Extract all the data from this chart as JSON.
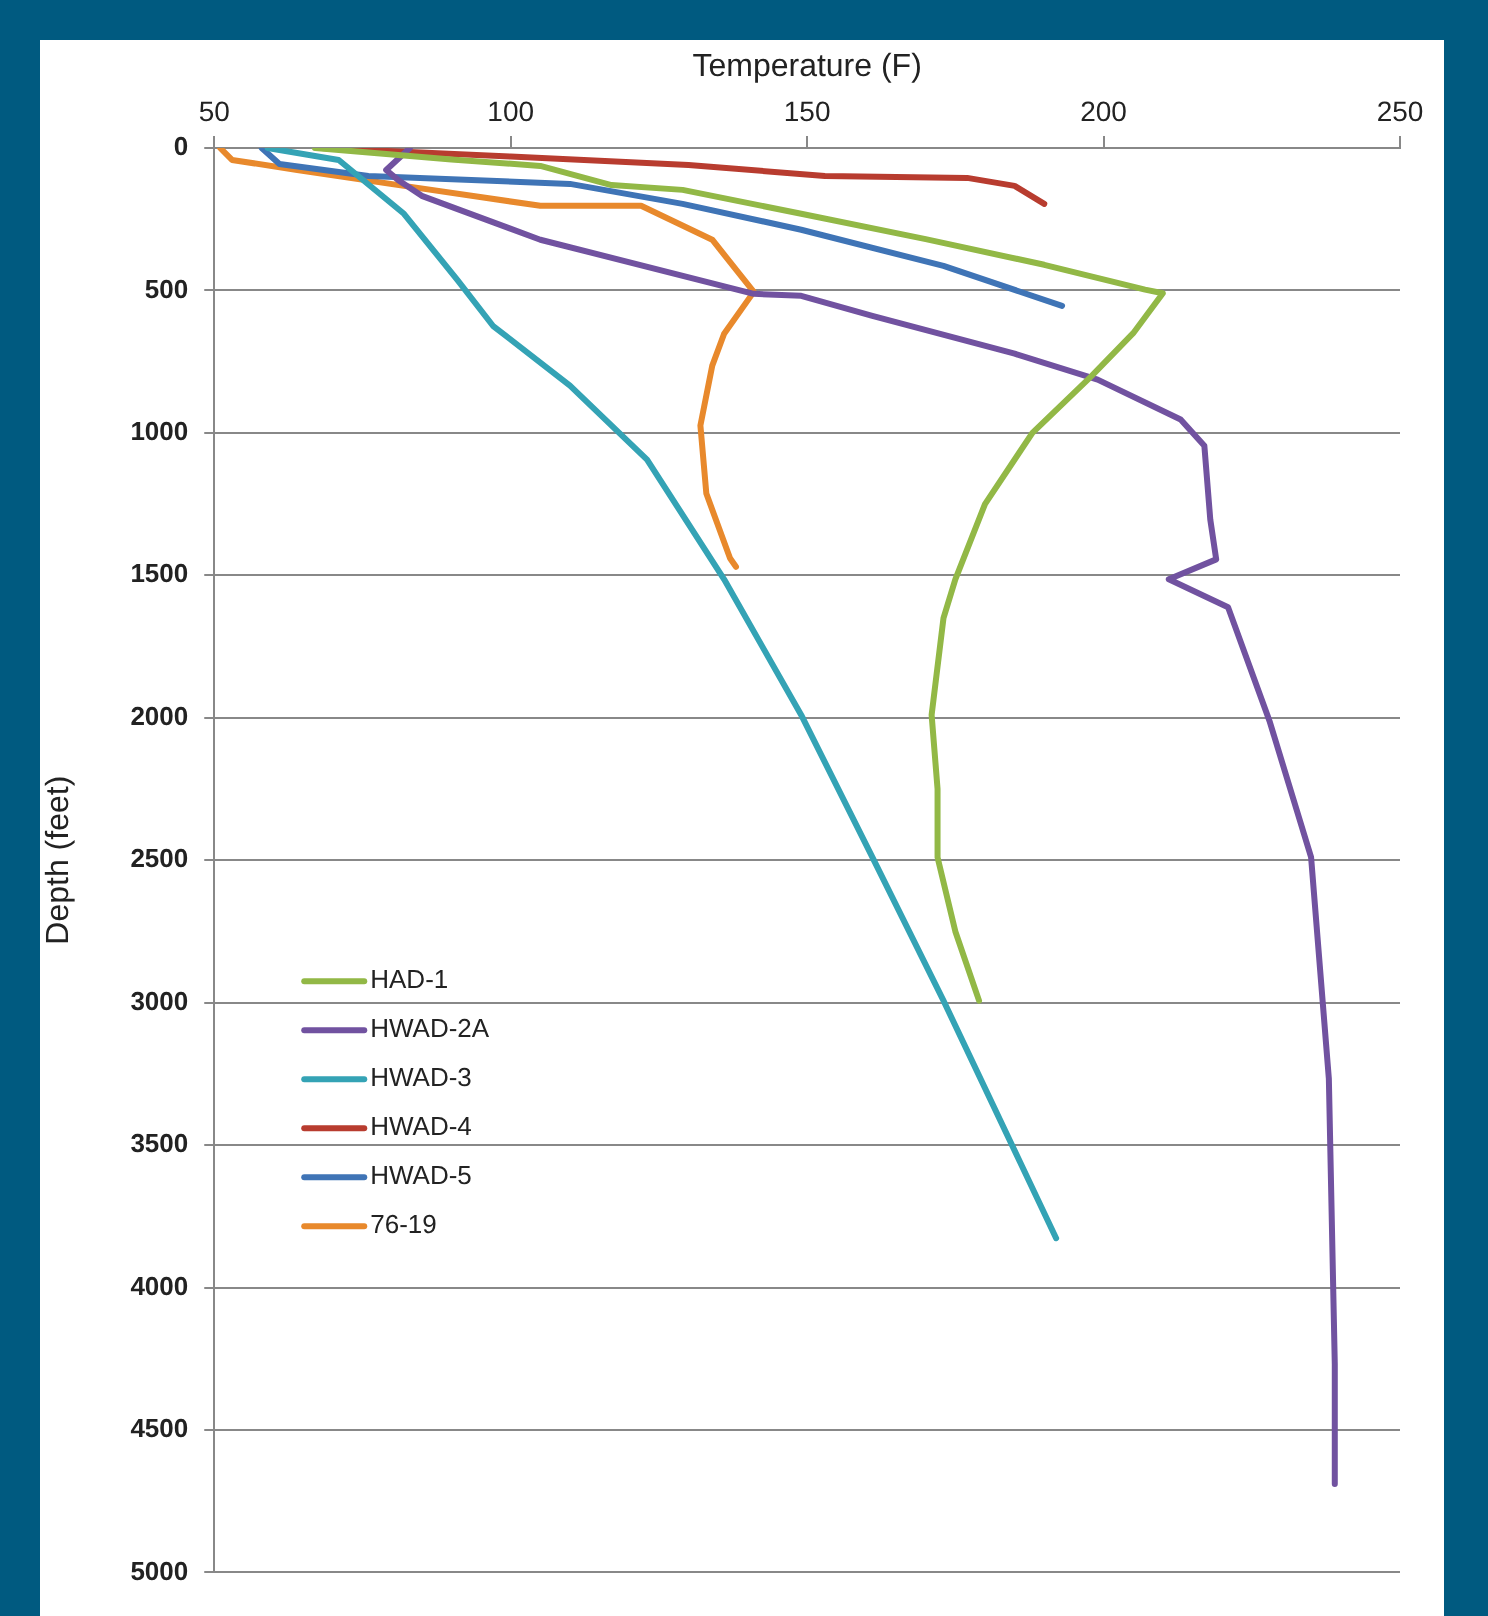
{
  "chart_data": {
    "type": "line",
    "xlabel": "Temperature (F)",
    "ylabel": "Depth (feet)",
    "xlim": [
      50,
      250
    ],
    "xticks": [
      50,
      100,
      150,
      200,
      250
    ],
    "ylim": [
      5000,
      0
    ],
    "yticks": [
      0,
      500,
      1000,
      1500,
      2000,
      2500,
      3000,
      3500,
      4000,
      4500,
      5000
    ],
    "grid": "y",
    "legend": "left",
    "series": [
      {
        "name": "HAD-1",
        "color": "#92b846",
        "x": [
          67,
          90,
          105,
          117,
          129,
          149,
          170,
          190,
          207,
          210,
          205,
          198,
          188,
          180,
          175,
          173,
          171,
          172,
          172,
          175,
          179
        ],
        "values": [
          0,
          40,
          63,
          130,
          147,
          231,
          320,
          410,
          497,
          510,
          650,
          800,
          1000,
          1250,
          1514,
          1650,
          1990,
          2250,
          2490,
          2750,
          2993
        ]
      },
      {
        "name": "HWAD-2A",
        "color": "#7152a0",
        "x": [
          83,
          79,
          81,
          85,
          105,
          141,
          149,
          161,
          185,
          199,
          213,
          217,
          218,
          219,
          211,
          221,
          228,
          235,
          238,
          239,
          239
        ],
        "values": [
          0,
          77,
          112,
          168,
          322,
          512,
          519,
          589,
          722,
          813,
          953,
          1045,
          1304,
          1444,
          1514,
          1612,
          2012,
          2489,
          3267,
          4269,
          4690
        ]
      },
      {
        "name": "HWAD-3",
        "color": "#34a3b5",
        "x": [
          59,
          71,
          82,
          91,
          97,
          110,
          123,
          136,
          149,
          161,
          173,
          192
        ],
        "values": [
          0,
          42,
          231,
          463,
          624,
          834,
          1094,
          1514,
          1990,
          2489,
          2993,
          3827
        ]
      },
      {
        "name": "HWAD-4",
        "color": "#b83c2f",
        "x": [
          68,
          100,
          130,
          153,
          177,
          185,
          190
        ],
        "values": [
          0,
          30,
          60,
          98,
          105,
          133,
          196
        ]
      },
      {
        "name": "HWAD-5",
        "color": "#3f74b6",
        "x": [
          58,
          61,
          76,
          110,
          129,
          149,
          173,
          193
        ],
        "values": [
          0,
          56,
          98,
          126,
          196,
          287,
          414,
          554
        ]
      },
      {
        "name": "76-19",
        "color": "#e8892c",
        "x": [
          51,
          53,
          64,
          82,
          105,
          122,
          134,
          141,
          136,
          134,
          132,
          133,
          137,
          138
        ],
        "values": [
          0,
          42,
          77,
          133,
          203,
          203,
          322,
          505,
          652,
          764,
          974,
          1213,
          1440,
          1470
        ]
      }
    ]
  }
}
